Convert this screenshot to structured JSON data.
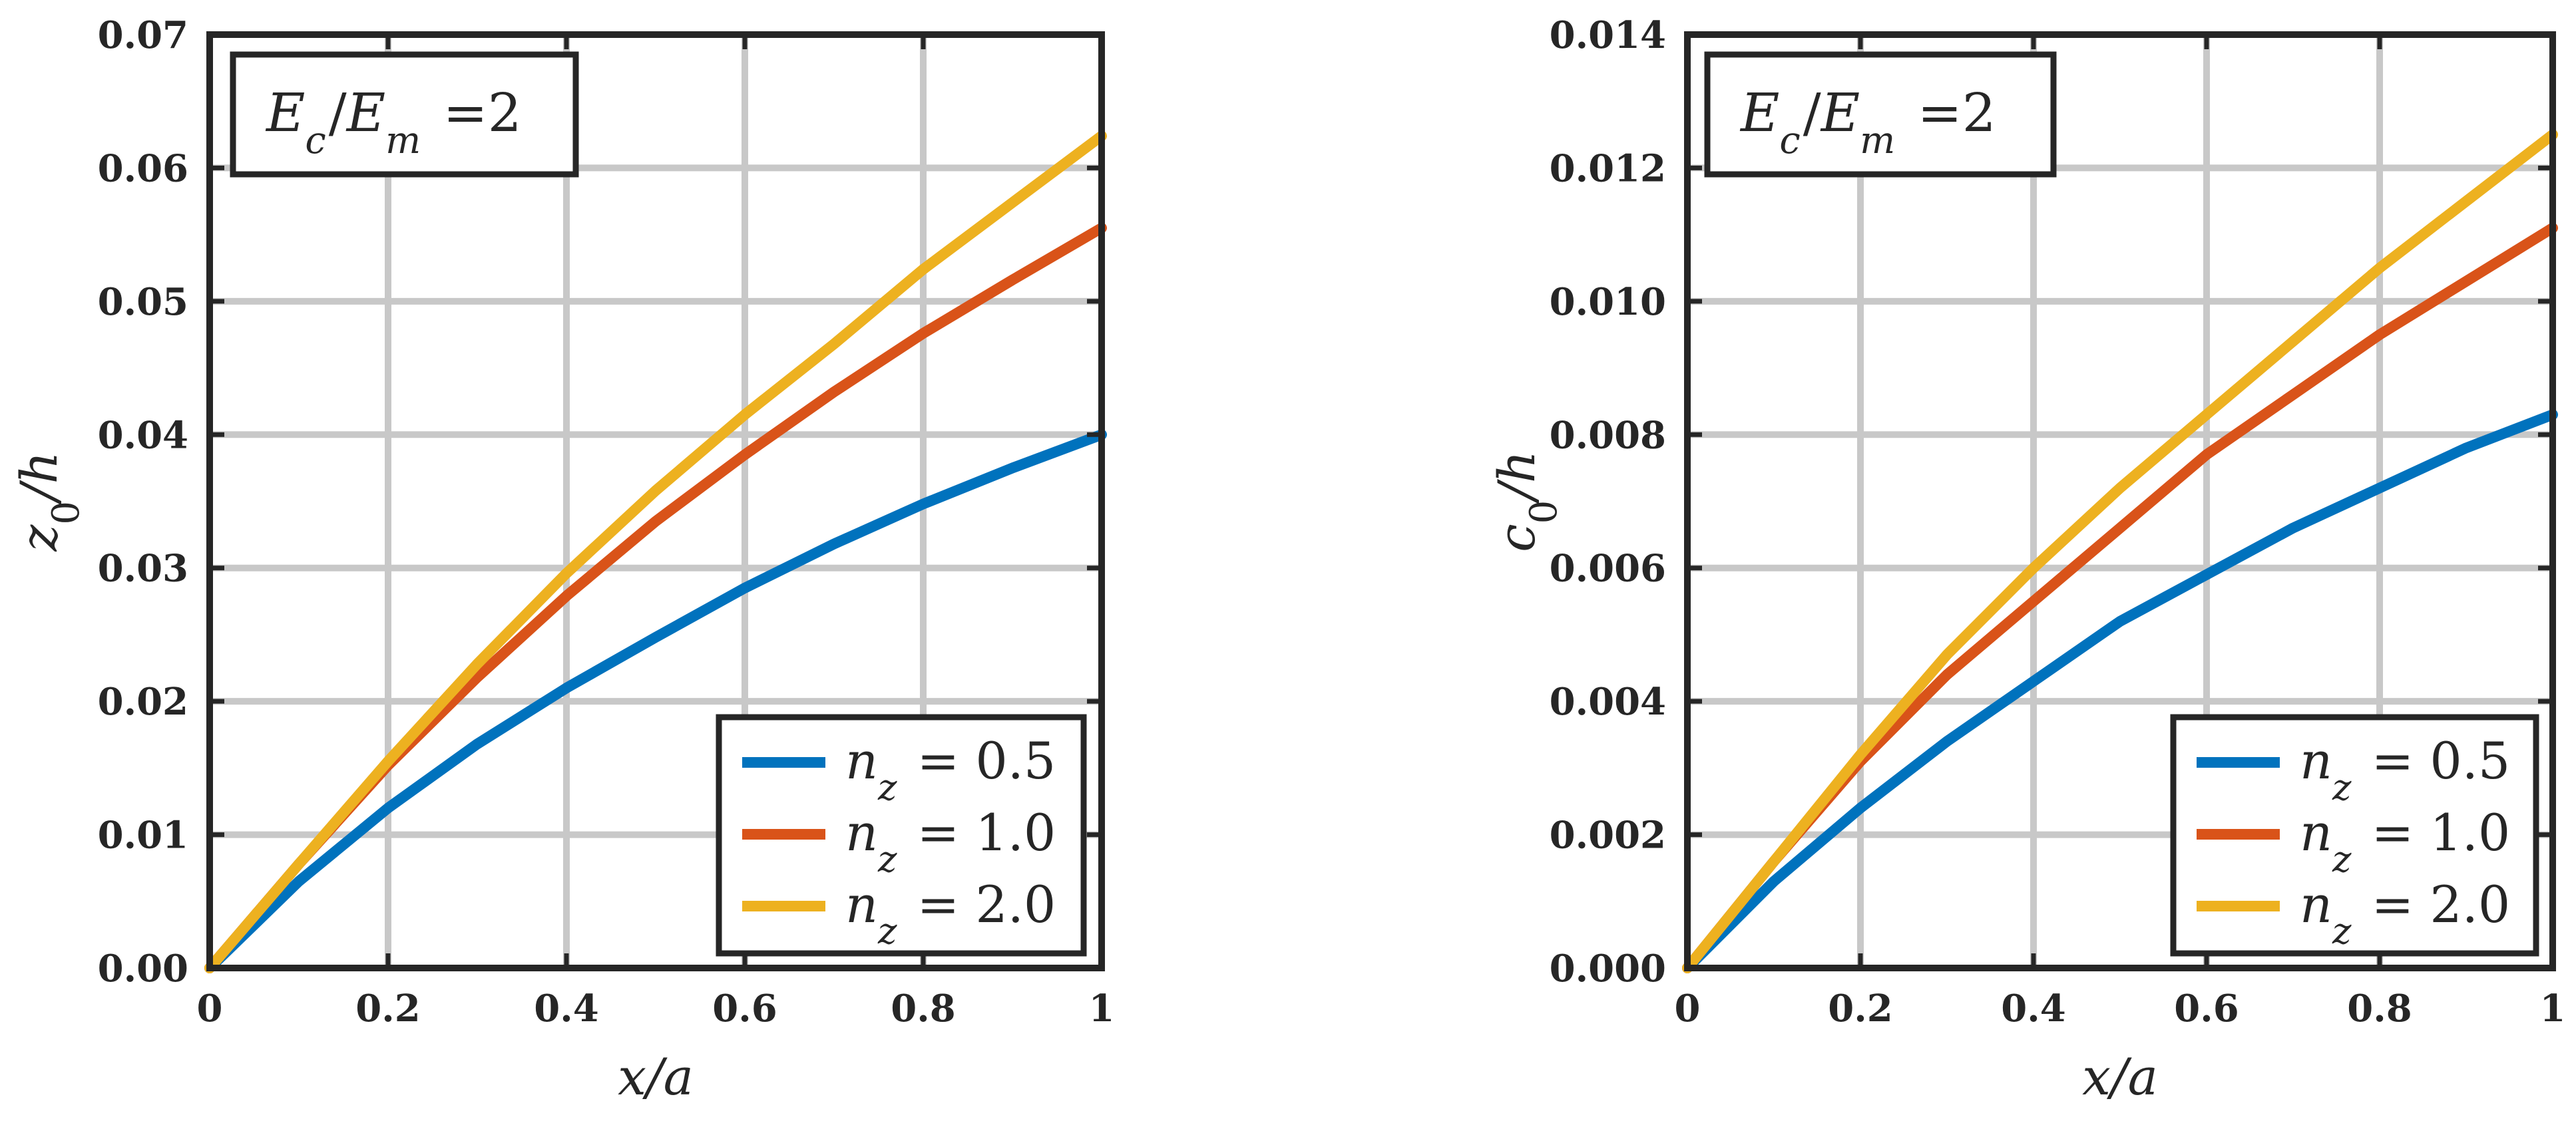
{
  "chart_data": [
    {
      "type": "line",
      "ylabel": "z₀/h",
      "xlabel": "x/a",
      "xlim": [
        0,
        1
      ],
      "ylim": [
        0,
        0.07
      ],
      "grid": true,
      "x_ticks": [
        "0",
        "0.2",
        "0.4",
        "0.6",
        "0.8",
        "1"
      ],
      "y_ticks": [
        "0.00",
        "0.01",
        "0.02",
        "0.03",
        "0.04",
        "0.05",
        "0.06",
        "0.07"
      ],
      "annotation": {
        "label": "Ec/Em =2",
        "position": "top-left"
      },
      "legend_position": "bottom-right",
      "x": [
        0,
        0.1,
        0.2,
        0.3,
        0.4,
        0.5,
        0.6,
        0.7,
        0.8,
        0.9,
        1.0
      ],
      "series": [
        {
          "name": "nz = 0.5",
          "color": "#0072BD",
          "values": [
            0,
            0.0065,
            0.012,
            0.0168,
            0.021,
            0.0248,
            0.0285,
            0.0318,
            0.0348,
            0.0375,
            0.04
          ]
        },
        {
          "name": "nz = 1.0",
          "color": "#D95319",
          "values": [
            0,
            0.0078,
            0.0152,
            0.0218,
            0.0279,
            0.0335,
            0.0385,
            0.0432,
            0.0476,
            0.0516,
            0.0555
          ]
        },
        {
          "name": "nz = 2.0",
          "color": "#EDB120",
          "values": [
            0,
            0.0078,
            0.0155,
            0.0228,
            0.0296,
            0.0358,
            0.0415,
            0.0468,
            0.0524,
            0.0574,
            0.0624
          ]
        }
      ]
    },
    {
      "type": "line",
      "ylabel": "c₀/h",
      "xlabel": "x/a",
      "xlim": [
        0,
        1
      ],
      "ylim": [
        0,
        0.014
      ],
      "grid": true,
      "x_ticks": [
        "0",
        "0.2",
        "0.4",
        "0.6",
        "0.8",
        "1"
      ],
      "y_ticks": [
        "0.000",
        "0.002",
        "0.004",
        "0.006",
        "0.008",
        "0.010",
        "0.012",
        "0.014"
      ],
      "annotation": {
        "label": "Ec/Em =2",
        "position": "top-left"
      },
      "legend_position": "bottom-right",
      "x": [
        0,
        0.1,
        0.2,
        0.3,
        0.4,
        0.5,
        0.6,
        0.7,
        0.8,
        0.9,
        1.0
      ],
      "series": [
        {
          "name": "nz = 0.5",
          "color": "#0072BD",
          "values": [
            0,
            0.0013,
            0.0024,
            0.0034,
            0.0043,
            0.0052,
            0.0059,
            0.0066,
            0.0072,
            0.0078,
            0.0083
          ]
        },
        {
          "name": "nz = 1.0",
          "color": "#D95319",
          "values": [
            0,
            0.0016,
            0.0031,
            0.0044,
            0.0055,
            0.0066,
            0.0077,
            0.0086,
            0.0095,
            0.0103,
            0.0111
          ]
        },
        {
          "name": "nz = 2.0",
          "color": "#EDB120",
          "values": [
            0,
            0.0016,
            0.0032,
            0.0047,
            0.006,
            0.0072,
            0.0083,
            0.0094,
            0.0105,
            0.0115,
            0.0125
          ]
        }
      ]
    }
  ]
}
